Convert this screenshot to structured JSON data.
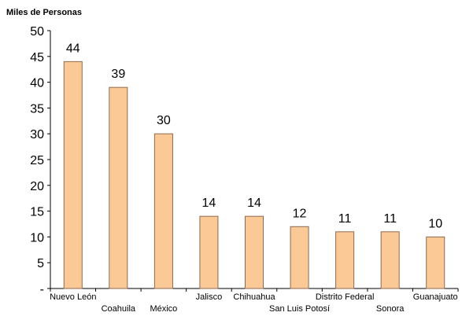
{
  "chart_data": {
    "type": "bar",
    "ylabel": "Miles de Personas",
    "ylim": [
      0,
      50
    ],
    "yticks": [
      "-",
      "5",
      "10",
      "15",
      "20",
      "25",
      "30",
      "35",
      "40",
      "45",
      "50"
    ],
    "categories": [
      "Nuevo León",
      "Coahuila",
      "México",
      "Jalisco",
      "Chihuahua",
      "San Luis Potosí",
      "Distrito Federal",
      "Sonora",
      "Guanajuato"
    ],
    "values": [
      44,
      39,
      30,
      14,
      14,
      12,
      11,
      11,
      10
    ],
    "value_labels": [
      "44",
      "39",
      "30",
      "14",
      "14",
      "12",
      "11",
      "11",
      "10"
    ],
    "bar_color": "#FBC996",
    "bar_stroke": "#8C6A50",
    "grid": false,
    "legend": "none"
  }
}
